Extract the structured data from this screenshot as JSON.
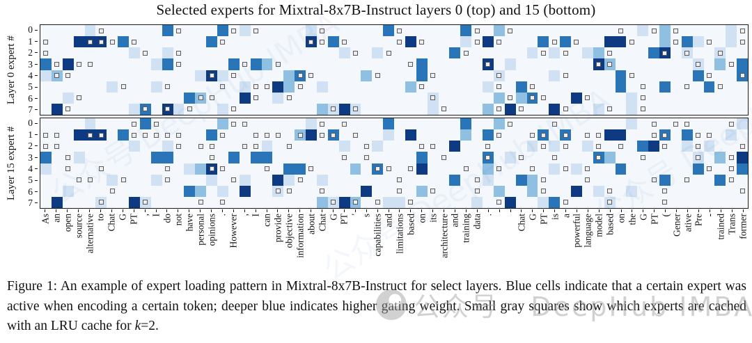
{
  "title": "Selected experts for Mixtral-8x7B-Instruct layers 0 (top) and 15 (bottom)",
  "chart_data": {
    "type": "heatmap",
    "description": "Two stacked heatmaps (64 token columns x 8 expert rows). Cell intensity 0-4 encodes expert gating weight (0 = inactive, 4 = darkest blue / highest weight). 'cached' lists column indices per row where a small gray square marks an LRU-cached expert.",
    "color_levels": [
      "#f4f8fc",
      "#cfe1f2",
      "#8fc0e1",
      "#2a74b8",
      "#0d3a80"
    ],
    "tokens": [
      "As",
      "an",
      "open",
      "source",
      "alternative",
      "to",
      "Chat",
      "G",
      "PT",
      ",",
      "I",
      "do",
      "not",
      "have",
      "personal",
      "opinions",
      ".",
      "However",
      ",",
      "I",
      "can",
      "provide",
      "objective",
      "information",
      "about",
      "Chat",
      "G",
      "PT",
      "'",
      "s",
      "capabilities",
      "and",
      "limitations",
      "based",
      "on",
      "its",
      "architecture",
      "and",
      "training",
      "data",
      ".",
      "",
      "",
      "Chat",
      "G",
      "PT",
      "is",
      "a",
      "powerful",
      "language",
      "model",
      "based",
      "on",
      "the",
      "G",
      "PT",
      "(",
      "Gener",
      "ative",
      "Pre",
      "-",
      "trained",
      "Trans",
      "former"
    ],
    "panels": [
      {
        "label": "Layer 0 expert #",
        "experts": [
          "0",
          "1",
          "2",
          "3",
          "4",
          "5",
          "6",
          "7"
        ],
        "grid": [
          "0000100000030000301000001000000300000030020000000000001020000010",
          "0004440300000003000000004030000004000010400003030004400020310010",
          "0000000010010000000000000001001000000300000010100120000340100100",
          "3040000000130000030320000000000000300000401000000042000000010203",
          "1200000000000014100000230000020000300000010000100000300000030003",
          "0000001000100000001004200100000002000000100300000000300030003000",
          "0010000000000320004001000000000000010000020230004000010000000000",
          "0400000013041000100000000214100000010000204000400010010000000000"
        ],
        "cached": [
          [
            5,
            12,
            17,
            19,
            25,
            32,
            39,
            42,
            52,
            55,
            57,
            63
          ],
          [
            0,
            4,
            5,
            6,
            8,
            16,
            24,
            25,
            27,
            32,
            34,
            39,
            41,
            46,
            48,
            53,
            57,
            60,
            63
          ],
          [
            0,
            9,
            12,
            28,
            31,
            38,
            45,
            47,
            51,
            56,
            58,
            61
          ],
          [
            1,
            3,
            4,
            12,
            18,
            21,
            33,
            40,
            50,
            51,
            59,
            62
          ],
          [
            1,
            2,
            15,
            17,
            23,
            24,
            30,
            35,
            41,
            47,
            53,
            60,
            63
          ],
          [
            7,
            11,
            16,
            19,
            20,
            23,
            34,
            41,
            44,
            54,
            58,
            61
          ],
          [
            3,
            14,
            15,
            19,
            22,
            35,
            42,
            44,
            45,
            49,
            54
          ],
          [
            2,
            9,
            11,
            13,
            17,
            26,
            28,
            36,
            41,
            43,
            47,
            51,
            54
          ]
        ]
      },
      {
        "label": "Layer 15 expert #",
        "experts": [
          "0",
          "1",
          "2",
          "3",
          "4",
          "5",
          "6",
          "7"
        ],
        "grid": [
          "0000100003000000200000001000000300000030020000000000010000000001",
          "0004440300000003000000024030000104000020300003030004400030300010",
          "0000000010010000000010000001001000000400000010100100003400101000",
          "3001000000330000030330000000000000300000301000000032000000010204",
          "1000000000000124000000330000203000400000200000101000300000030003",
          "0000001000100001001004100100000000000300100320000000000030000300",
          "0010000000000320104001000000040000200000020020004010010000000000",
          "0400010041000000000000000214200110000001004001300001000000000000"
        ],
        "cached": [
          [
            8,
            10,
            17,
            18,
            25,
            27,
            42,
            46,
            55,
            57,
            58,
            62
          ],
          [
            0,
            1,
            4,
            5,
            8,
            9,
            10,
            11,
            12,
            16,
            19,
            20,
            21,
            23,
            25,
            26,
            28,
            41,
            44,
            45,
            47,
            49,
            50,
            55,
            56,
            59,
            60
          ],
          [
            0,
            1,
            12,
            14,
            15,
            18,
            19,
            22,
            29,
            34,
            35,
            40,
            45,
            47,
            50,
            52,
            56,
            59,
            63
          ],
          [
            2,
            15,
            27,
            29,
            36,
            40,
            43,
            46,
            50,
            54,
            59,
            62
          ],
          [
            2,
            5,
            11,
            15,
            16,
            20,
            24,
            30,
            31,
            33,
            38,
            41,
            44,
            47,
            49,
            60,
            62
          ],
          [
            3,
            4,
            7,
            11,
            17,
            23,
            32,
            39,
            45,
            49,
            55,
            58,
            62
          ],
          [
            6,
            21,
            22,
            25,
            32,
            35,
            39,
            45,
            51,
            56,
            63
          ],
          [
            5,
            9,
            14,
            16,
            26,
            28,
            30,
            33,
            41,
            47,
            51,
            56
          ]
        ]
      }
    ]
  },
  "caption": {
    "p1": "Figure 1: An example of expert loading pattern in Mixtral-8x7B-Instruct for select layers. Blue cells indicate that a certain expert was active when encoding a certain token; deeper blue indicates higher gating weight. Small gray squares show which experts are cached with an LRU cache for ",
    "k": "k",
    "p2": "=2."
  },
  "watermark": {
    "badge": "公众号 · DeepHub IMBA",
    "diag": "公众号 DeepHub IMBA"
  },
  "colors": {
    "scale": [
      "#f4f8fc",
      "#cfe1f2",
      "#8fc0e1",
      "#2a74b8",
      "#0d3a80"
    ],
    "cacheFill": "#ededed",
    "cacheBorder": "#5a5a5a"
  }
}
